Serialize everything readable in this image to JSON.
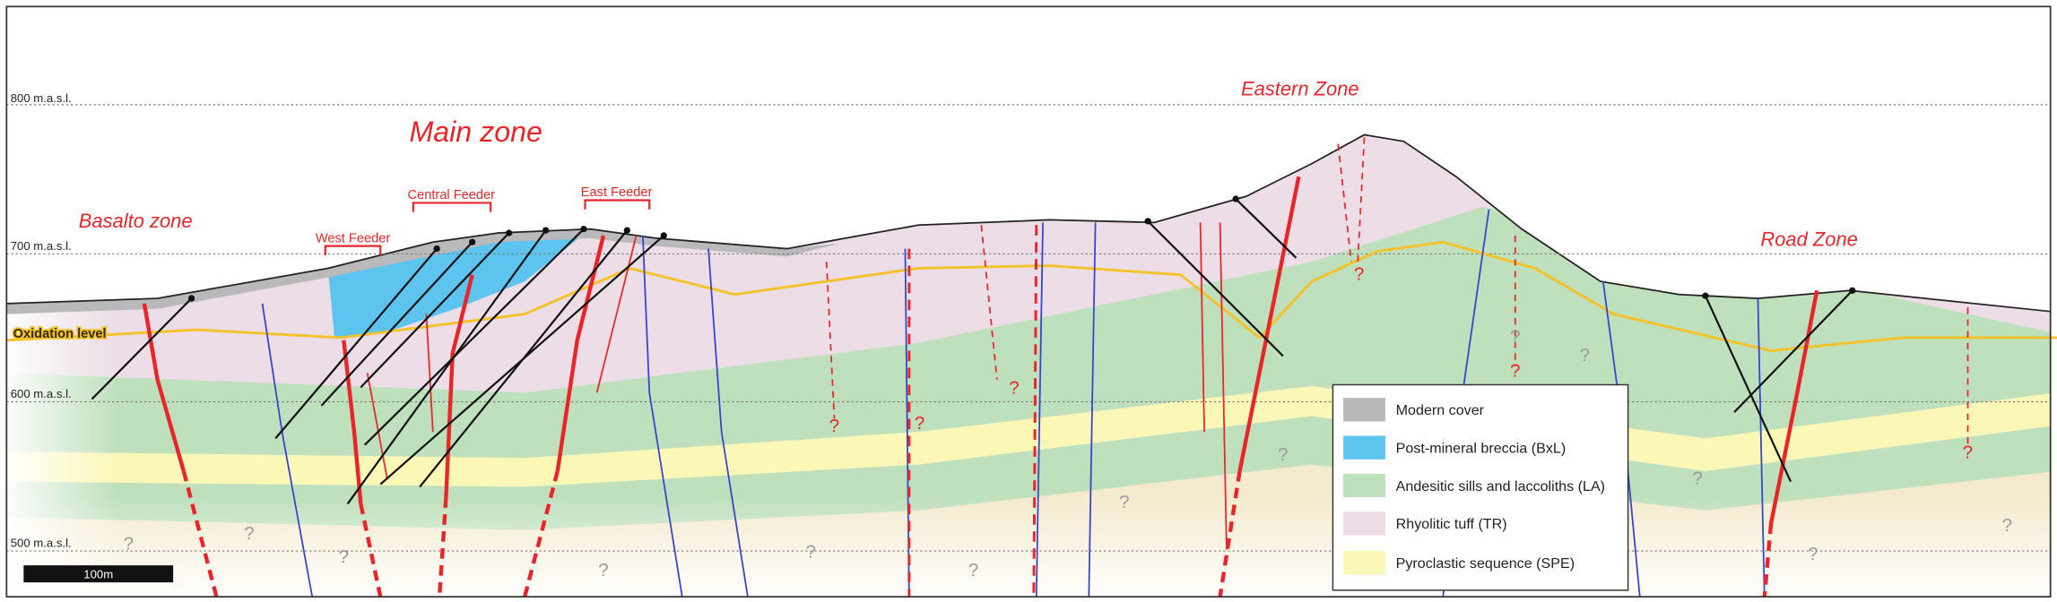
{
  "elevation_labels": [
    "800 m.a.s.l.",
    "700 m.a.s.l.",
    "600 m.a.s.l.",
    "500 m.a.s.l."
  ],
  "zones": [
    "Main zone",
    "Eastern Zone",
    "Basalto zone",
    "Road Zone"
  ],
  "feeders": [
    "West Feeder",
    "Central Feeder",
    "East Feeder"
  ],
  "oxidation_label": "Oxidation level",
  "scale_bar": "100m",
  "legend": [
    "Modern cover",
    "Post-mineral breccia (BxL)",
    "Andesitic sills and laccoliths (LA)",
    "Rhyolitic tuff (TR)",
    "Pyroclastic sequence (SPE)"
  ],
  "question_marks_gray": [
    "?",
    "?",
    "?",
    "?",
    "?",
    "?",
    "?",
    "?",
    "?",
    "?",
    "?",
    "?",
    "?"
  ],
  "question_marks_red": [
    "?",
    "?",
    "?",
    "?",
    "?",
    "?"
  ]
}
